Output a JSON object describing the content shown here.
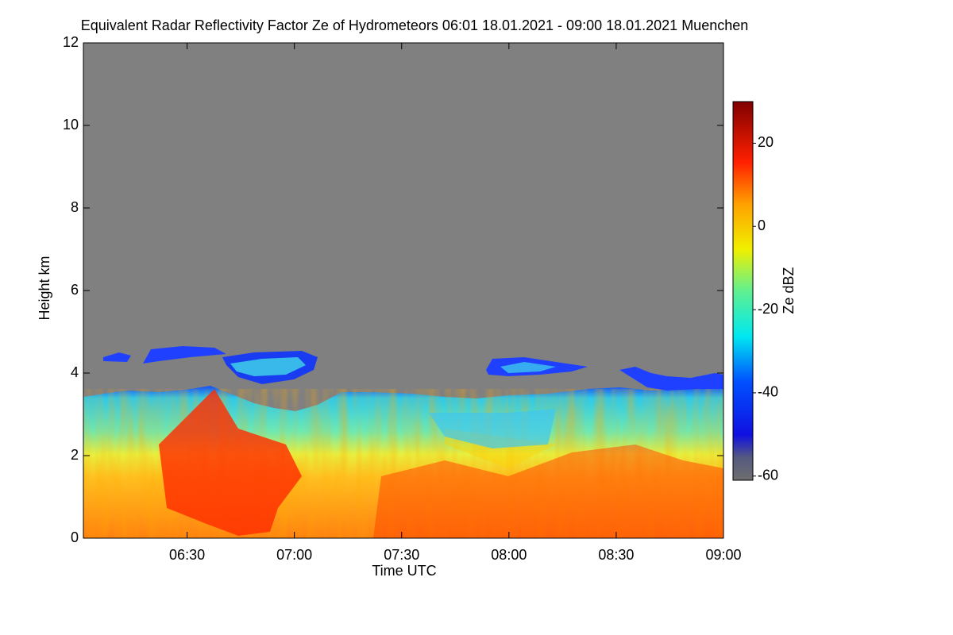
{
  "chart_data": {
    "type": "heatmap",
    "title": "Equivalent Radar Reflectivity Factor Ze of Hydrometeors   06:01 18.01.2021 - 09:00 18.01.2021 Muenchen",
    "x_label": "Time UTC",
    "y_label": "Height km",
    "xlim": [
      361,
      540
    ],
    "xticks": [
      {
        "value": 390,
        "label": "06:30"
      },
      {
        "value": 420,
        "label": "07:00"
      },
      {
        "value": 450,
        "label": "07:30"
      },
      {
        "value": 480,
        "label": "08:00"
      },
      {
        "value": 510,
        "label": "08:30"
      },
      {
        "value": 540,
        "label": "09:00"
      }
    ],
    "ylim": [
      0,
      12
    ],
    "yticks": [
      0,
      2,
      4,
      6,
      8,
      10,
      12
    ],
    "colorbar": {
      "label": "Ze dBZ",
      "lim": [
        -61,
        30
      ],
      "ticks": [
        -60,
        -40,
        -20,
        0,
        20
      ]
    }
  }
}
